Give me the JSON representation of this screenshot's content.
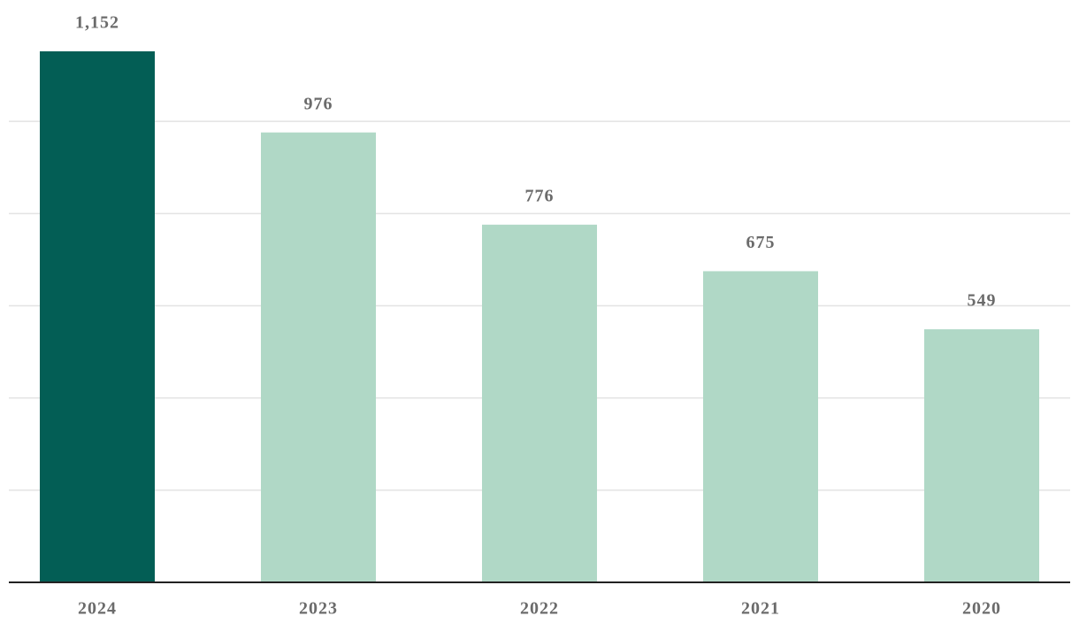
{
  "chart_data": {
    "type": "bar",
    "categories": [
      "2024",
      "2023",
      "2022",
      "2021",
      "2020"
    ],
    "values": [
      1152,
      976,
      776,
      675,
      549
    ],
    "value_labels": [
      "1,152",
      "976",
      "776",
      "675",
      "549"
    ],
    "colors": [
      "#035e55",
      "#b0d8c6",
      "#b0d8c6",
      "#b0d8c6",
      "#b0d8c6"
    ],
    "ylim": [
      0,
      1200
    ],
    "yticks": [
      0,
      200,
      400,
      600,
      800,
      1000
    ],
    "grid": true
  }
}
